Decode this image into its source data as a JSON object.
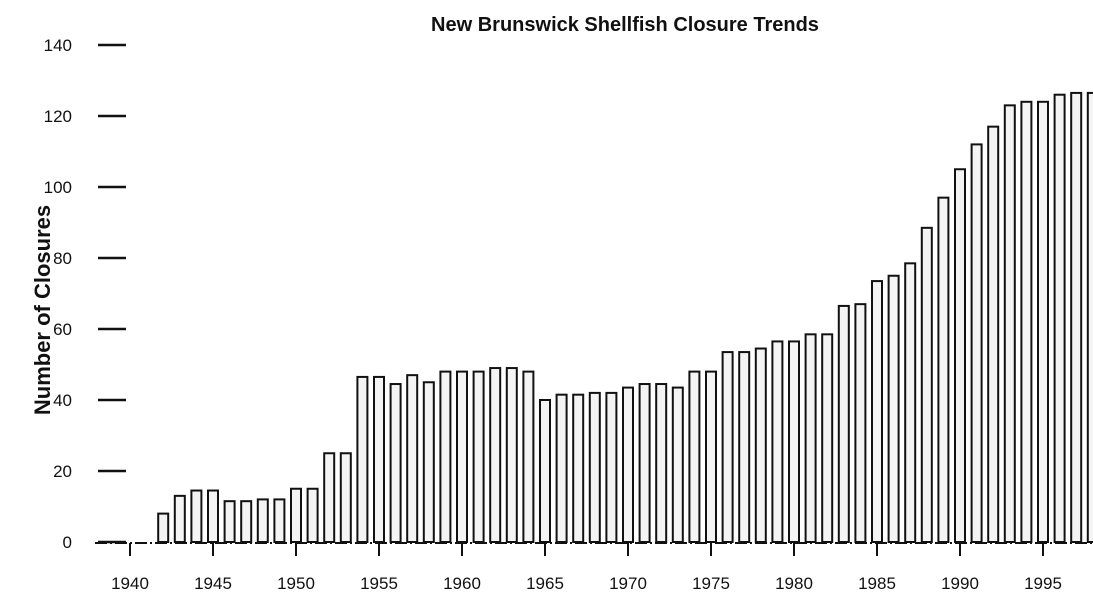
{
  "chart_data": {
    "type": "bar",
    "title": "New Brunswick Shellfish Closure Trends",
    "xlabel": "",
    "ylabel": "Number of Closures",
    "ylim": [
      0,
      140
    ],
    "yticks": [
      "0",
      "20",
      "40",
      "60",
      "80",
      "100",
      "120",
      "140"
    ],
    "xticks": [
      "1940",
      "1945",
      "1950",
      "1955",
      "1960",
      "1965",
      "1970",
      "1975",
      "1980",
      "1985",
      "1990",
      "1995"
    ],
    "grid": false,
    "categories": [
      "1942",
      "1943",
      "1944",
      "1945",
      "1946",
      "1947",
      "1948",
      "1949",
      "1950",
      "1951",
      "1952",
      "1953",
      "1954",
      "1955",
      "1956",
      "1957",
      "1958",
      "1959",
      "1960",
      "1961",
      "1962",
      "1963",
      "1964",
      "1965",
      "1966",
      "1967",
      "1968",
      "1969",
      "1970",
      "1971",
      "1972",
      "1973",
      "1974",
      "1975",
      "1976",
      "1977",
      "1978",
      "1979",
      "1980",
      "1981",
      "1982",
      "1983",
      "1984",
      "1985",
      "1986",
      "1987",
      "1988",
      "1989",
      "1990",
      "1991",
      "1992",
      "1993",
      "1994",
      "1995",
      "1996",
      "1997",
      "1998"
    ],
    "values": [
      8,
      13,
      14.5,
      14.5,
      11.5,
      11.5,
      12,
      12,
      15,
      15,
      25,
      25,
      46.5,
      46.5,
      44.5,
      47,
      45,
      48,
      48,
      48,
      49,
      49,
      48,
      40,
      41.5,
      41.5,
      42,
      42,
      43.5,
      44.5,
      44.5,
      43.5,
      48,
      48,
      53.5,
      53.5,
      54.5,
      56.5,
      56.5,
      58.5,
      58.5,
      66.5,
      67,
      73.5,
      75,
      78.5,
      88.5,
      97,
      105,
      112,
      117,
      123,
      124,
      124,
      126,
      126.5,
      126.5
    ]
  }
}
